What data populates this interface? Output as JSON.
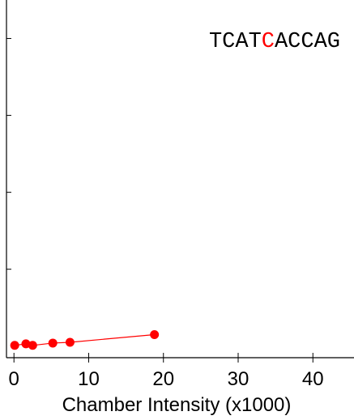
{
  "chart_data": {
    "type": "line",
    "title": "",
    "xlabel": "Chamber Intensity (x1000)",
    "ylabel": "",
    "xlim": [
      -1,
      45.5
    ],
    "ylim": [
      -0.15,
      4.5
    ],
    "xticks": [
      0,
      10,
      20,
      30,
      40
    ],
    "xtick_labels": [
      "0",
      "10",
      "20",
      "30",
      "40"
    ],
    "yticks": [
      1,
      2,
      3,
      4
    ],
    "grid": false,
    "annotation": {
      "segments": [
        {
          "text": "TCAT",
          "highlight": false
        },
        {
          "text": "C",
          "highlight": true
        },
        {
          "text": "ACCAG",
          "highlight": false
        }
      ],
      "placement": "top-right"
    },
    "series": [
      {
        "color": "#ff0000",
        "x": [
          0.1,
          1.6,
          2.5,
          5.2,
          7.5,
          18.8
        ],
        "y": [
          0.01,
          0.03,
          0.01,
          0.04,
          0.05,
          0.15
        ]
      }
    ]
  }
}
